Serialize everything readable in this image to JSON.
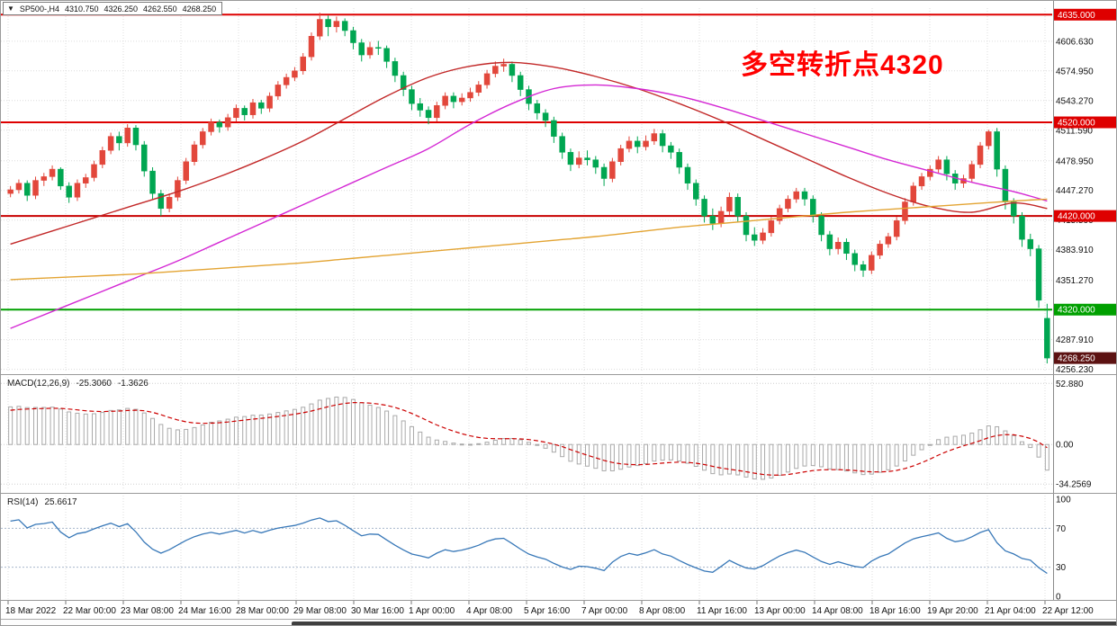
{
  "header": {
    "title_chip": {
      "dropdown_icon": "▼",
      "symbol_timeframe": "SP500-,H4",
      "open": "4310.750",
      "high": "4326.250",
      "low": "4262.550",
      "close": "4268.250"
    }
  },
  "annotation": {
    "text": "多空转折点4320",
    "color": "#FF0000"
  },
  "colors": {
    "bull_candle": "#E2473B",
    "bear_candle": "#00A651",
    "grid": "#DCDCDC",
    "level_dotted": "#A8B8CC",
    "macd_histogram": "#A9A9A9",
    "macd_signal": "#CC0000",
    "rsi_line": "#3878B8",
    "axis_text": "#111111"
  },
  "scrollbar": {
    "thumb_left_pct": 26,
    "thumb_width_pct": 74
  },
  "chart_data": {
    "type": "candlestick",
    "symbol": "SP500-",
    "timeframe": "H4",
    "title": "SP500-,H4",
    "current_bar": {
      "open": 4310.75,
      "high": 4326.25,
      "low": 4262.55,
      "close": 4268.25
    },
    "price_axis_ticks": [
      {
        "value": 4606.63,
        "label": "4606.630"
      },
      {
        "value": 4574.95,
        "label": "4574.950"
      },
      {
        "value": 4543.27,
        "label": "4543.270"
      },
      {
        "value": 4511.59,
        "label": "4511.590"
      },
      {
        "value": 4478.95,
        "label": "4478.950"
      },
      {
        "value": 4447.27,
        "label": "4447.270"
      },
      {
        "value": 4415.59,
        "label": "4415.590"
      },
      {
        "value": 4383.91,
        "label": "4383.910"
      },
      {
        "value": 4351.27,
        "label": "4351.270"
      },
      {
        "value": 4287.91,
        "label": "4287.910"
      },
      {
        "value": 4256.23,
        "label": "4256.230"
      }
    ],
    "horizontal_lines": [
      {
        "value": 4635.0,
        "color": "#DE0000",
        "width": 2
      },
      {
        "value": 4520.0,
        "color": "#DE0000",
        "width": 2
      },
      {
        "value": 4420.0,
        "color": "#C80000",
        "width": 2
      },
      {
        "value": 4320.0,
        "color": "#00A000",
        "width": 2
      }
    ],
    "price_badges": [
      {
        "value": 4635.0,
        "label": "4635.000",
        "bg": "#DE0000"
      },
      {
        "value": 4520.0,
        "label": "4520.000",
        "bg": "#DE0000"
      },
      {
        "value": 4420.0,
        "label": "4420.000",
        "bg": "#DE0000"
      },
      {
        "value": 4320.0,
        "label": "4320.000",
        "bg": "#00A000"
      },
      {
        "value": 4268.25,
        "label": "4268.250",
        "bg": "#5C1212"
      }
    ],
    "x_labels": [
      "18 Mar 2022",
      "22 Mar 00:00",
      "23 Mar 08:00",
      "24 Mar 16:00",
      "28 Mar 00:00",
      "29 Mar 08:00",
      "30 Mar 16:00",
      "1 Apr 00:00",
      "4 Apr 08:00",
      "5 Apr 16:00",
      "7 Apr 00:00",
      "8 Apr 08:00",
      "11 Apr 16:00",
      "13 Apr 00:00",
      "14 Apr 08:00",
      "18 Apr 16:00",
      "19 Apr 20:00",
      "21 Apr 04:00",
      "22 Apr 12:00"
    ],
    "prehistory_closes": [
      4440,
      4448,
      4452,
      4444,
      4425,
      4400,
      4370,
      4338,
      4305,
      4275,
      4250,
      4230,
      4215,
      4205,
      4200,
      4202,
      4208,
      4218,
      4228,
      4236,
      4242,
      4246,
      4248,
      4246,
      4252,
      4247,
      4258,
      4269,
      4264,
      4275,
      4286,
      4281,
      4292,
      4303,
      4298,
      4309,
      4320,
      4315,
      4326,
      4337,
      4332,
      4343,
      4354,
      4349,
      4360,
      4371,
      4366,
      4377,
      4388,
      4383,
      4394,
      4405,
      4400,
      4411,
      4422,
      4417,
      4428,
      4439,
      4436,
      4445
    ],
    "candles_ohlc": [
      [
        4444,
        4452,
        4440,
        4448
      ],
      [
        4448,
        4459,
        4444,
        4455
      ],
      [
        4455,
        4458,
        4436,
        4442
      ],
      [
        4442,
        4462,
        4438,
        4458
      ],
      [
        4458,
        4466,
        4452,
        4462
      ],
      [
        4462,
        4474,
        4458,
        4470
      ],
      [
        4470,
        4472,
        4448,
        4452
      ],
      [
        4452,
        4456,
        4434,
        4440
      ],
      [
        4440,
        4459,
        4436,
        4455
      ],
      [
        4455,
        4465,
        4450,
        4461
      ],
      [
        4461,
        4479,
        4457,
        4475
      ],
      [
        4475,
        4494,
        4471,
        4490
      ],
      [
        4490,
        4509,
        4486,
        4505
      ],
      [
        4505,
        4510,
        4490,
        4498
      ],
      [
        4498,
        4518,
        4494,
        4514
      ],
      [
        4514,
        4517,
        4490,
        4496
      ],
      [
        4496,
        4500,
        4462,
        4468
      ],
      [
        4468,
        4472,
        4438,
        4444
      ],
      [
        4444,
        4448,
        4420,
        4428
      ],
      [
        4428,
        4444,
        4424,
        4440
      ],
      [
        4440,
        4462,
        4436,
        4458
      ],
      [
        4458,
        4482,
        4454,
        4478
      ],
      [
        4478,
        4500,
        4474,
        4496
      ],
      [
        4496,
        4514,
        4492,
        4510
      ],
      [
        4510,
        4524,
        4506,
        4520
      ],
      [
        4520,
        4523,
        4509,
        4515
      ],
      [
        4515,
        4529,
        4511,
        4525
      ],
      [
        4525,
        4539,
        4521,
        4535
      ],
      [
        4535,
        4538,
        4522,
        4528
      ],
      [
        4528,
        4545,
        4524,
        4541
      ],
      [
        4541,
        4544,
        4529,
        4535
      ],
      [
        4535,
        4552,
        4531,
        4548
      ],
      [
        4548,
        4564,
        4544,
        4560
      ],
      [
        4560,
        4572,
        4556,
        4568
      ],
      [
        4568,
        4579,
        4564,
        4575
      ],
      [
        4575,
        4594,
        4571,
        4590
      ],
      [
        4590,
        4616,
        4586,
        4612
      ],
      [
        4612,
        4637,
        4608,
        4630
      ],
      [
        4630,
        4634,
        4612,
        4622
      ],
      [
        4622,
        4633,
        4616,
        4628
      ],
      [
        4628,
        4631,
        4612,
        4618
      ],
      [
        4618,
        4622,
        4598,
        4605
      ],
      [
        4605,
        4609,
        4585,
        4592
      ],
      [
        4592,
        4606,
        4588,
        4600
      ],
      [
        4600,
        4607,
        4592,
        4599
      ],
      [
        4599,
        4602,
        4578,
        4585
      ],
      [
        4585,
        4589,
        4563,
        4570
      ],
      [
        4570,
        4574,
        4548,
        4555
      ],
      [
        4555,
        4559,
        4533,
        4540
      ],
      [
        4540,
        4546,
        4526,
        4533
      ],
      [
        4533,
        4537,
        4518,
        4525
      ],
      [
        4525,
        4542,
        4521,
        4538
      ],
      [
        4538,
        4552,
        4534,
        4548
      ],
      [
        4548,
        4552,
        4535,
        4542
      ],
      [
        4542,
        4551,
        4538,
        4546
      ],
      [
        4546,
        4557,
        4542,
        4552
      ],
      [
        4552,
        4564,
        4548,
        4560
      ],
      [
        4560,
        4576,
        4556,
        4572
      ],
      [
        4572,
        4585,
        4568,
        4580
      ],
      [
        4580,
        4588,
        4574,
        4582
      ],
      [
        4582,
        4585,
        4563,
        4570
      ],
      [
        4570,
        4574,
        4548,
        4555
      ],
      [
        4555,
        4559,
        4533,
        4540
      ],
      [
        4540,
        4544,
        4523,
        4530
      ],
      [
        4530,
        4534,
        4515,
        4522
      ],
      [
        4522,
        4526,
        4498,
        4505
      ],
      [
        4505,
        4509,
        4481,
        4488
      ],
      [
        4488,
        4492,
        4468,
        4475
      ],
      [
        4475,
        4489,
        4471,
        4482
      ],
      [
        4482,
        4490,
        4474,
        4480
      ],
      [
        4480,
        4484,
        4465,
        4472
      ],
      [
        4472,
        4476,
        4452,
        4460
      ],
      [
        4460,
        4482,
        4456,
        4478
      ],
      [
        4478,
        4496,
        4474,
        4492
      ],
      [
        4492,
        4505,
        4488,
        4500
      ],
      [
        4500,
        4505,
        4487,
        4494
      ],
      [
        4494,
        4506,
        4490,
        4500
      ],
      [
        4500,
        4513,
        4496,
        4508
      ],
      [
        4508,
        4512,
        4488,
        4495
      ],
      [
        4495,
        4499,
        4481,
        4488
      ],
      [
        4488,
        4492,
        4465,
        4472
      ],
      [
        4472,
        4476,
        4448,
        4455
      ],
      [
        4455,
        4459,
        4431,
        4438
      ],
      [
        4438,
        4442,
        4413,
        4420
      ],
      [
        4420,
        4428,
        4405,
        4412
      ],
      [
        4412,
        4430,
        4408,
        4425
      ],
      [
        4425,
        4445,
        4421,
        4440
      ],
      [
        4440,
        4444,
        4413,
        4420
      ],
      [
        4420,
        4424,
        4393,
        4400
      ],
      [
        4400,
        4408,
        4388,
        4394
      ],
      [
        4394,
        4407,
        4390,
        4402
      ],
      [
        4402,
        4419,
        4398,
        4415
      ],
      [
        4415,
        4432,
        4411,
        4428
      ],
      [
        4428,
        4442,
        4424,
        4438
      ],
      [
        4438,
        4450,
        4434,
        4446
      ],
      [
        4446,
        4450,
        4431,
        4438
      ],
      [
        4438,
        4442,
        4413,
        4420
      ],
      [
        4420,
        4424,
        4393,
        4400
      ],
      [
        4400,
        4404,
        4378,
        4385
      ],
      [
        4385,
        4397,
        4379,
        4392
      ],
      [
        4392,
        4396,
        4373,
        4380
      ],
      [
        4380,
        4384,
        4361,
        4368
      ],
      [
        4368,
        4372,
        4355,
        4362
      ],
      [
        4362,
        4382,
        4358,
        4378
      ],
      [
        4378,
        4394,
        4374,
        4390
      ],
      [
        4390,
        4402,
        4386,
        4398
      ],
      [
        4398,
        4419,
        4394,
        4415
      ],
      [
        4415,
        4439,
        4411,
        4435
      ],
      [
        4435,
        4456,
        4431,
        4452
      ],
      [
        4452,
        4466,
        4448,
        4462
      ],
      [
        4462,
        4474,
        4458,
        4470
      ],
      [
        4470,
        4484,
        4466,
        4480
      ],
      [
        4480,
        4484,
        4458,
        4465
      ],
      [
        4465,
        4469,
        4448,
        4455
      ],
      [
        4455,
        4464,
        4450,
        4460
      ],
      [
        4460,
        4479,
        4456,
        4475
      ],
      [
        4475,
        4499,
        4471,
        4495
      ],
      [
        4495,
        4512,
        4491,
        4510
      ],
      [
        4510,
        4514,
        4462,
        4470
      ],
      [
        4470,
        4474,
        4427,
        4435
      ],
      [
        4435,
        4439,
        4412,
        4420
      ],
      [
        4420,
        4424,
        4387,
        4395
      ],
      [
        4395,
        4401,
        4377,
        4385
      ],
      [
        4385,
        4389,
        4322,
        4330
      ],
      [
        4310.75,
        4326.25,
        4262.55,
        4268.25
      ]
    ],
    "moving_averages": [
      {
        "name": "ma-fast-red",
        "color": "#C22828",
        "indices": [
          0,
          5,
          10,
          15,
          20,
          25,
          30,
          35,
          40,
          45,
          50,
          55,
          60,
          65,
          70,
          75,
          80,
          85,
          90,
          95,
          100,
          105,
          110,
          115,
          120,
          124
        ],
        "values": [
          4390,
          4404,
          4418,
          4432,
          4446,
          4462,
          4480,
          4500,
          4524,
          4548,
          4568,
          4580,
          4584,
          4579,
          4569,
          4556,
          4540,
          4522,
          4502,
          4482,
          4462,
          4444,
          4430,
          4424,
          4434,
          4428
        ]
      },
      {
        "name": "ma-mid-magenta",
        "color": "#D428D4",
        "indices": [
          0,
          5,
          10,
          15,
          20,
          25,
          30,
          35,
          40,
          45,
          50,
          55,
          60,
          65,
          70,
          75,
          80,
          85,
          90,
          95,
          100,
          105,
          110,
          115,
          120,
          124
        ],
        "values": [
          4300,
          4318,
          4336,
          4354,
          4372,
          4392,
          4412,
          4432,
          4452,
          4472,
          4492,
          4518,
          4540,
          4556,
          4560,
          4556,
          4548,
          4536,
          4522,
          4508,
          4494,
          4480,
          4468,
          4456,
          4446,
          4436
        ]
      },
      {
        "name": "ma-slow-orange",
        "color": "#E3A433",
        "indices": [
          0,
          5,
          10,
          15,
          20,
          25,
          30,
          35,
          40,
          45,
          50,
          55,
          60,
          65,
          70,
          75,
          80,
          85,
          90,
          95,
          100,
          105,
          110,
          115,
          120,
          124
        ],
        "values": [
          4352,
          4354,
          4356,
          4358,
          4361,
          4364,
          4367,
          4370,
          4374,
          4378,
          4382,
          4386,
          4390,
          4394,
          4398,
          4403,
          4408,
          4412,
          4416,
          4420,
          4424,
          4427,
          4430,
          4433,
          4436,
          4438
        ]
      }
    ],
    "macd": {
      "label": "MACD(12,26,9)",
      "value_main": "-25.3060",
      "value_signal": "-1.3626",
      "params": {
        "fast": 12,
        "slow": 26,
        "signal": 9
      },
      "axis_labels": [
        {
          "value": 52.88,
          "label": "52.880"
        },
        {
          "value": 0,
          "label": "0.00"
        },
        {
          "value": -34.2569,
          "label": "-34.2569"
        }
      ]
    },
    "rsi": {
      "label": "RSI(14)",
      "value": "25.6617",
      "period": 14,
      "levels": [
        70,
        30
      ],
      "axis_labels": [
        {
          "value": 100,
          "label": "100"
        },
        {
          "value": 70,
          "label": "70"
        },
        {
          "value": 30,
          "label": "30"
        },
        {
          "value": 0,
          "label": "0"
        }
      ]
    }
  }
}
